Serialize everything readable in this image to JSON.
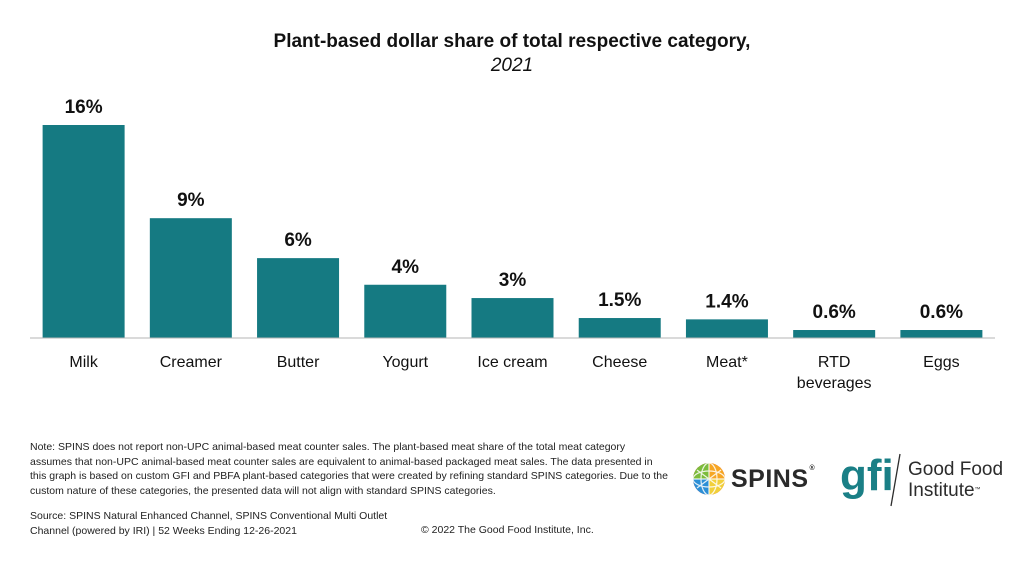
{
  "chart_data": {
    "type": "bar",
    "title": "Plant-based dollar share of total respective category,",
    "subtitle": "2021",
    "categories": [
      "Milk",
      "Creamer",
      "Butter",
      "Yogurt",
      "Ice cream",
      "Cheese",
      "Meat*",
      "RTD beverages",
      "Eggs"
    ],
    "values": [
      16,
      9,
      6,
      4,
      3,
      1.5,
      1.4,
      0.6,
      0.6
    ],
    "data_labels": [
      "16%",
      "9%",
      "6%",
      "4%",
      "3%",
      "1.5%",
      "1.4%",
      "0.6%",
      "0.6%"
    ],
    "xlabel": "",
    "ylabel": "",
    "ylim": [
      0,
      16
    ],
    "grid": false,
    "bar_color": "#157a82"
  },
  "footer": {
    "note": "Note: SPINS does not report non-UPC animal-based meat counter sales. The plant-based meat share of the total meat category assumes that non-UPC animal-based meat counter sales are equivalent to animal-based packaged meat sales. The data presented in this graph is based on custom GFI and PBFA plant-based categories that were created by refining standard SPINS categories. Due to the custom nature of these categories, the presented data will not align with standard SPINS categories.",
    "source": "Source: SPINS Natural Enhanced Channel, SPINS Conventional Multi Outlet Channel (powered by IRI) | 52 Weeks Ending 12-26-2021",
    "copyright": "© 2022 The Good Food Institute, Inc."
  },
  "logos": {
    "spins": "SPINS",
    "spins_mark": "®",
    "gfi_mark": "gfi",
    "gfi_name_line1": "Good Food",
    "gfi_name_line2": "Institute",
    "gfi_tm": "™",
    "gfi_color": "#1a7f86"
  }
}
